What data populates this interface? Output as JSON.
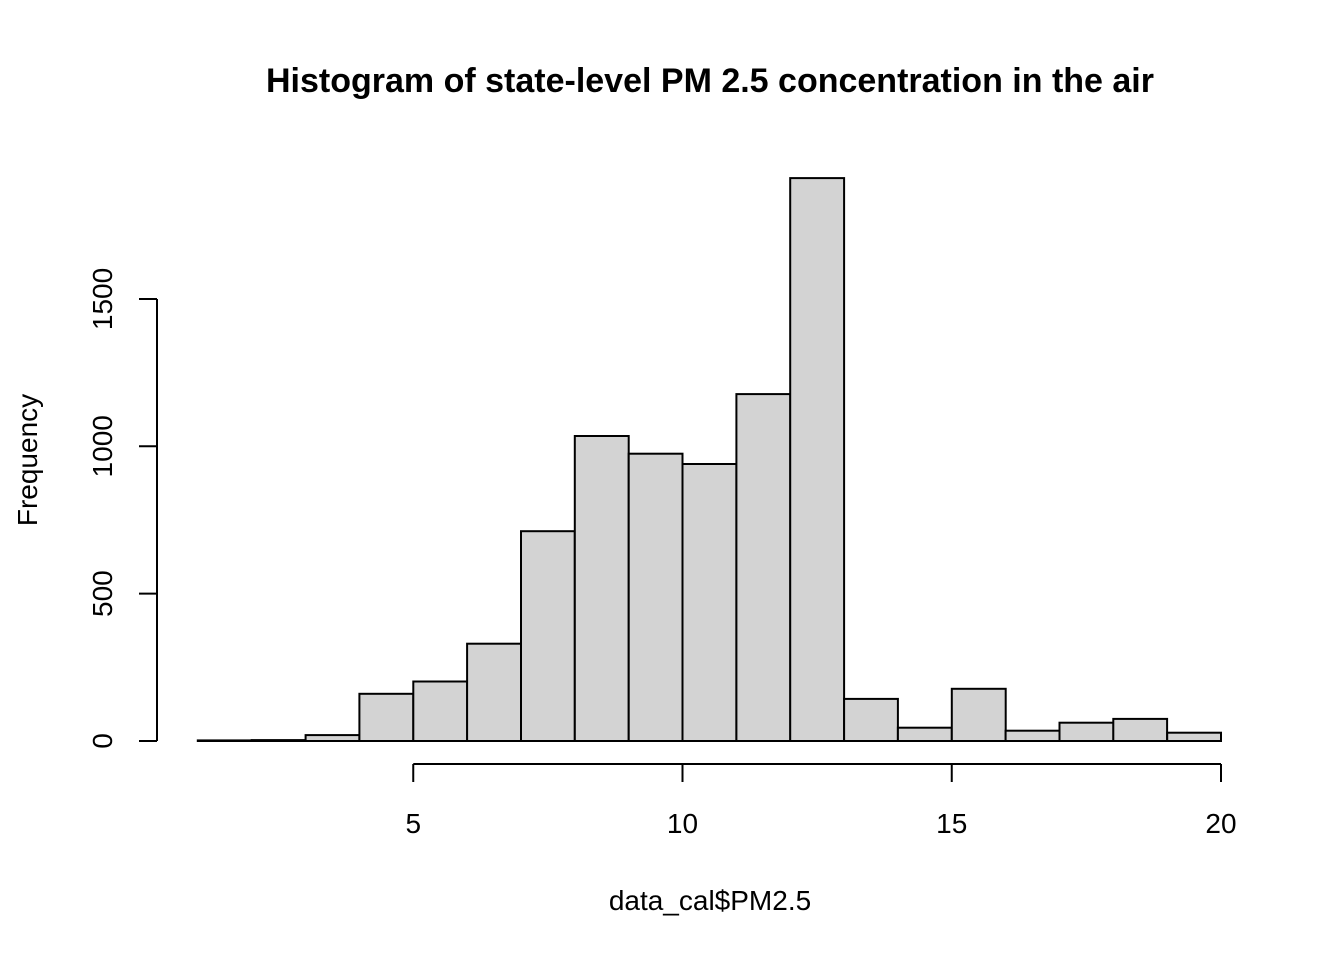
{
  "chart_data": {
    "type": "bar",
    "title": "Histogram of state-level PM 2.5 concentration in the air",
    "xlabel": "data_cal$PM2.5",
    "ylabel": "Frequency",
    "bin_edges": [
      1,
      2,
      3,
      4,
      5,
      6,
      7,
      8,
      9,
      10,
      11,
      12,
      13,
      14,
      15,
      16,
      17,
      18,
      19,
      20
    ],
    "values": [
      2,
      3,
      20,
      160,
      202,
      330,
      712,
      1035,
      975,
      940,
      1177,
      1910,
      143,
      45,
      177,
      35,
      62,
      75,
      28
    ],
    "x_ticks": [
      5,
      10,
      15,
      20
    ],
    "y_ticks": [
      0,
      500,
      1000,
      1500
    ],
    "xlim": [
      5,
      20
    ],
    "ylim": [
      0,
      1500
    ],
    "colors": {
      "bar_fill": "#d3d3d3",
      "bar_stroke": "#000000"
    },
    "grid": false
  }
}
